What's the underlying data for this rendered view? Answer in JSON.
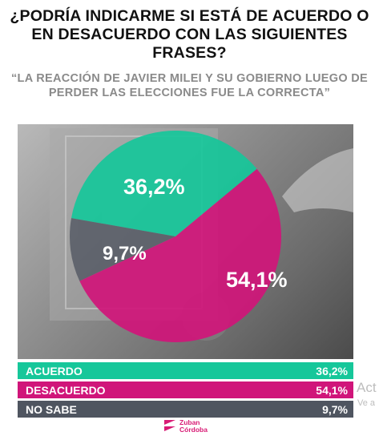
{
  "question": "¿PODRÍA INDICARME SI ESTÁ DE ACUERDO O EN DESACUERDO CON LAS SIGUIENTES FRASES?",
  "quote": "“LA REACCIÓN DE JAVIER MILEI Y SU GOBIERNO LUEGO DE PERDER LAS ELECCIONES FUE LA CORRECTA”",
  "colors": {
    "acuerdo": "#16c79a",
    "desacuerdo": "#d0157a",
    "no_sabe": "#4f5560"
  },
  "chart_data": {
    "type": "pie",
    "title": "",
    "slices": [
      {
        "label": "ACUERDO",
        "value": 36.2,
        "display": "36,2%",
        "color": "#16c79a"
      },
      {
        "label": "DESACUERDO",
        "value": 54.1,
        "display": "54,1%",
        "color": "#d0157a"
      },
      {
        "label": "NO SABE",
        "value": 9.7,
        "display": "9,7%",
        "color": "#4f5560"
      }
    ]
  },
  "legend": [
    {
      "label": "ACUERDO",
      "value": "36,2%",
      "color": "#16c79a"
    },
    {
      "label": "DESACUERDO",
      "value": "54,1%",
      "color": "#d0157a"
    },
    {
      "label": "NO SABE",
      "value": "9,7%",
      "color": "#4f5560"
    }
  ],
  "watermark": {
    "line1": "Act",
    "line2": "Ve a"
  },
  "brand": {
    "line1": "Zuban",
    "line2": "Córdoba"
  }
}
